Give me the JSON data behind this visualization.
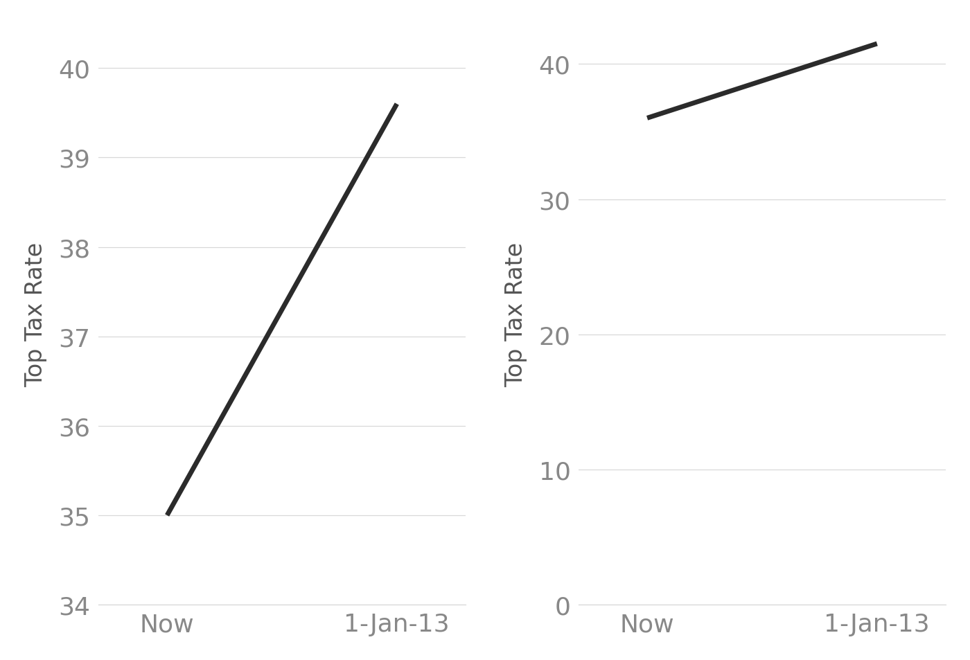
{
  "left": {
    "x": [
      0,
      1
    ],
    "y": [
      35,
      39.6
    ],
    "xlabels": [
      "Now",
      "1-Jan-13"
    ],
    "ylabel": "Top Tax Rate",
    "ylim": [
      34,
      40.5
    ],
    "yticks": [
      34,
      35,
      36,
      37,
      38,
      39,
      40
    ]
  },
  "right": {
    "x": [
      0,
      1
    ],
    "y": [
      36,
      41.5
    ],
    "xlabels": [
      "Now",
      "1-Jan-13"
    ],
    "ylabel": "Top Tax Rate",
    "ylim": [
      0,
      43
    ],
    "yticks": [
      0,
      10,
      20,
      30,
      40
    ]
  },
  "line_color": "#2b2b2b",
  "line_width": 5.0,
  "grid_color": "#d8d8d8",
  "bg_color": "#ffffff",
  "tick_color": "#888888",
  "label_color": "#555555",
  "tick_fontsize": 26,
  "ylabel_fontsize": 24
}
